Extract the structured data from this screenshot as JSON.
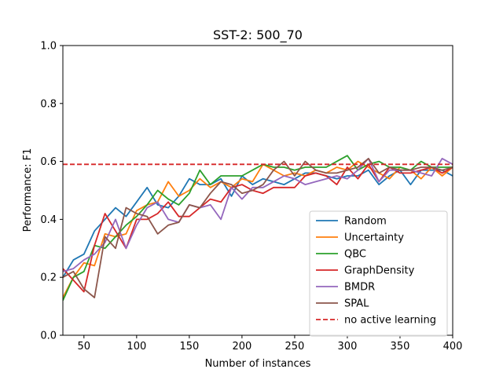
{
  "chart_data": {
    "type": "line",
    "title": "SST-2: 500_70",
    "xlabel": "Number of instances",
    "ylabel": "Performance: F1",
    "xlim": [
      30,
      400
    ],
    "ylim": [
      0.0,
      1.0
    ],
    "xticks": [
      50,
      100,
      150,
      200,
      250,
      300,
      350,
      400
    ],
    "xtick_labels": [
      "50",
      "100",
      "150",
      "200",
      "250",
      "300",
      "350",
      "400"
    ],
    "yticks": [
      0.0,
      0.2,
      0.4,
      0.6,
      0.8,
      1.0
    ],
    "ytick_labels": [
      "0.0",
      "0.2",
      "0.4",
      "0.6",
      "0.8",
      "1.0"
    ],
    "grid": false,
    "legend_position": "lower-right",
    "x": [
      30,
      40,
      50,
      60,
      70,
      80,
      90,
      100,
      110,
      120,
      130,
      140,
      150,
      160,
      170,
      180,
      190,
      200,
      210,
      220,
      230,
      240,
      250,
      260,
      270,
      280,
      290,
      300,
      310,
      320,
      330,
      340,
      350,
      360,
      370,
      380,
      390,
      400
    ],
    "series": [
      {
        "name": "Random",
        "color": "#1f77b4",
        "style": "solid",
        "values": [
          0.2,
          0.26,
          0.28,
          0.36,
          0.4,
          0.44,
          0.41,
          0.46,
          0.51,
          0.45,
          0.44,
          0.48,
          0.54,
          0.52,
          0.52,
          0.54,
          0.48,
          0.55,
          0.52,
          0.54,
          0.53,
          0.52,
          0.54,
          0.56,
          0.56,
          0.55,
          0.54,
          0.55,
          0.55,
          0.57,
          0.52,
          0.55,
          0.57,
          0.52,
          0.57,
          0.57,
          0.57,
          0.55
        ]
      },
      {
        "name": "Uncertainty",
        "color": "#ff7f0e",
        "style": "solid",
        "values": [
          0.13,
          0.2,
          0.25,
          0.24,
          0.35,
          0.34,
          0.35,
          0.43,
          0.45,
          0.46,
          0.53,
          0.48,
          0.5,
          0.54,
          0.51,
          0.53,
          0.51,
          0.54,
          0.53,
          0.59,
          0.57,
          0.55,
          0.56,
          0.55,
          0.57,
          0.56,
          0.58,
          0.57,
          0.6,
          0.58,
          0.56,
          0.54,
          0.58,
          0.57,
          0.54,
          0.58,
          0.55,
          0.58
        ]
      },
      {
        "name": "QBC",
        "color": "#2ca02c",
        "style": "solid",
        "values": [
          0.12,
          0.2,
          0.22,
          0.31,
          0.3,
          0.34,
          0.38,
          0.41,
          0.45,
          0.5,
          0.47,
          0.45,
          0.49,
          0.57,
          0.52,
          0.55,
          0.55,
          0.55,
          0.57,
          0.59,
          0.58,
          0.58,
          0.57,
          0.58,
          0.58,
          0.58,
          0.6,
          0.62,
          0.57,
          0.59,
          0.6,
          0.58,
          0.58,
          0.57,
          0.6,
          0.58,
          0.58,
          0.58
        ]
      },
      {
        "name": "GraphDensity",
        "color": "#d62728",
        "style": "solid",
        "values": [
          0.23,
          0.19,
          0.15,
          0.31,
          0.42,
          0.36,
          0.3,
          0.4,
          0.4,
          0.42,
          0.46,
          0.41,
          0.41,
          0.44,
          0.47,
          0.46,
          0.51,
          0.52,
          0.5,
          0.49,
          0.51,
          0.51,
          0.51,
          0.55,
          0.56,
          0.55,
          0.52,
          0.58,
          0.54,
          0.59,
          0.53,
          0.58,
          0.56,
          0.56,
          0.57,
          0.58,
          0.56,
          0.58
        ]
      },
      {
        "name": "BMDR",
        "color": "#9467bd",
        "style": "solid",
        "values": [
          0.22,
          0.23,
          0.26,
          0.28,
          0.32,
          0.4,
          0.3,
          0.38,
          0.44,
          0.46,
          0.4,
          0.39,
          0.45,
          0.44,
          0.45,
          0.4,
          0.51,
          0.47,
          0.51,
          0.51,
          0.53,
          0.55,
          0.54,
          0.52,
          0.53,
          0.54,
          0.55,
          0.54,
          0.57,
          0.61,
          0.53,
          0.57,
          0.57,
          0.57,
          0.56,
          0.55,
          0.61,
          0.59
        ]
      },
      {
        "name": "SPAL",
        "color": "#8c564b",
        "style": "solid",
        "values": [
          0.2,
          0.22,
          0.16,
          0.13,
          0.34,
          0.3,
          0.44,
          0.42,
          0.41,
          0.35,
          0.38,
          0.39,
          0.45,
          0.44,
          0.49,
          0.53,
          0.52,
          0.49,
          0.5,
          0.52,
          0.57,
          0.6,
          0.55,
          0.6,
          0.57,
          0.56,
          0.56,
          0.57,
          0.58,
          0.61,
          0.56,
          0.58,
          0.57,
          0.57,
          0.58,
          0.58,
          0.57,
          0.58
        ]
      },
      {
        "name": "no active learning",
        "color": "#d62728",
        "style": "dashed",
        "constant": 0.59
      }
    ]
  }
}
